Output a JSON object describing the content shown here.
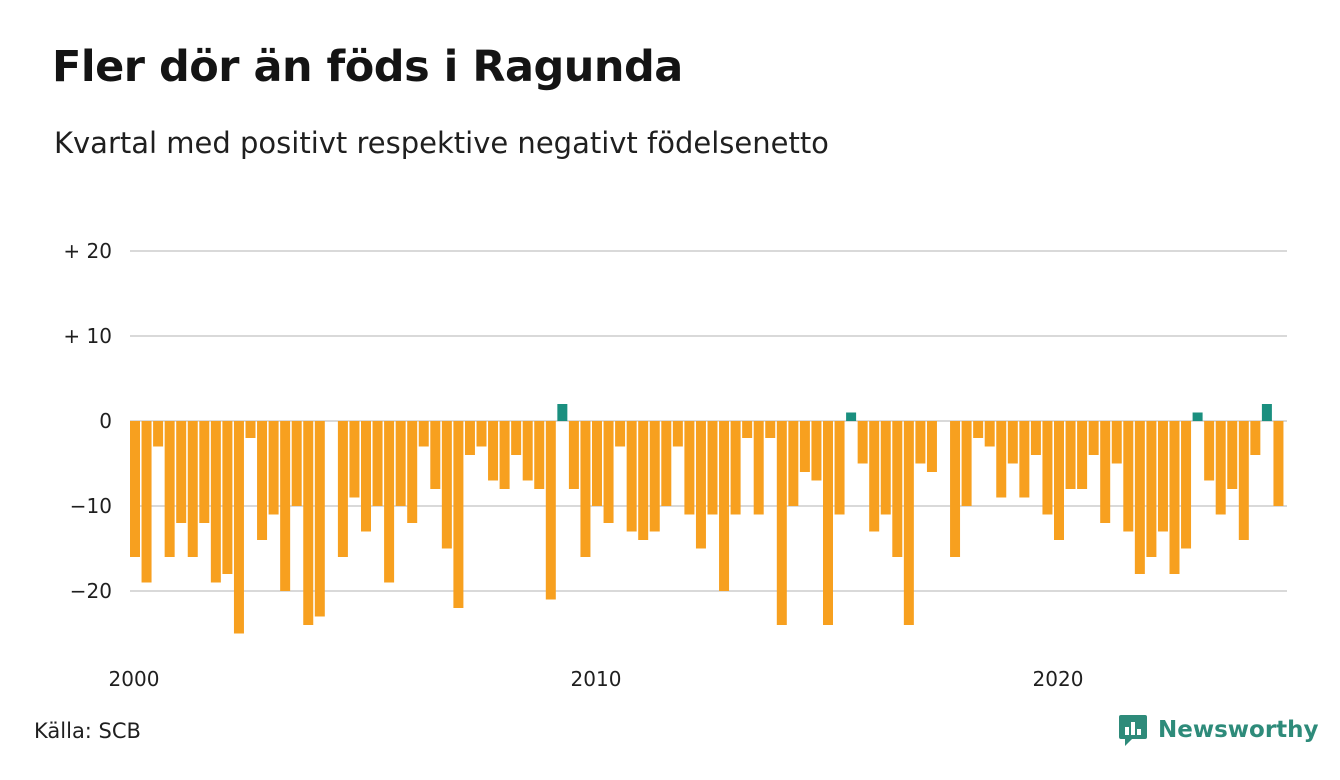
{
  "title": "Fler dör än föds i Ragunda",
  "subtitle": "Kvartal med positivt respektive negativt födelsenetto",
  "source": "Källa: SCB",
  "brand": {
    "name": "Newsworthy",
    "icon": "newsworthy-logo-icon"
  },
  "colors": {
    "negative": "#f7a01f",
    "positive": "#1a8f7f",
    "grid": "#d9d9d9",
    "brand": "#2e8b7a"
  },
  "chart_data": {
    "type": "bar",
    "x_start_year": 2000,
    "periods_per_year": 4,
    "ylim": [
      -25,
      20
    ],
    "yticks": [
      {
        "value": 20,
        "label": "+ 20"
      },
      {
        "value": 10,
        "label": "+ 10"
      },
      {
        "value": 0,
        "label": "0"
      },
      {
        "value": -10,
        "label": "−10"
      },
      {
        "value": -20,
        "label": "−20"
      }
    ],
    "xticks": [
      {
        "year": 2000,
        "label": "2000"
      },
      {
        "year": 2010,
        "label": "2010"
      },
      {
        "year": 2020,
        "label": "2020"
      }
    ],
    "grid": true,
    "values": [
      -16,
      -19,
      -3,
      -16,
      -12,
      -16,
      -12,
      -19,
      -18,
      -25,
      -2,
      -14,
      -11,
      -20,
      -10,
      -24,
      -23,
      0,
      -16,
      -9,
      -13,
      -10,
      -19,
      -10,
      -12,
      -3,
      -8,
      -15,
      -22,
      -4,
      -3,
      -7,
      -8,
      -4,
      -7,
      -8,
      -21,
      2,
      -8,
      -16,
      -10,
      -12,
      -3,
      -13,
      -14,
      -13,
      -10,
      -3,
      -11,
      -15,
      -11,
      -20,
      -11,
      -2,
      -11,
      -2,
      -24,
      -10,
      -6,
      -7,
      -24,
      -11,
      1,
      -5,
      -13,
      -11,
      -16,
      -24,
      -5,
      -6,
      0,
      -16,
      -10,
      -2,
      -3,
      -9,
      -5,
      -9,
      -4,
      -11,
      -14,
      -8,
      -8,
      -4,
      -12,
      -5,
      -13,
      -18,
      -16,
      -13,
      -18,
      -15,
      1,
      -7,
      -11,
      -8,
      -14,
      -4,
      2,
      -10
    ]
  }
}
